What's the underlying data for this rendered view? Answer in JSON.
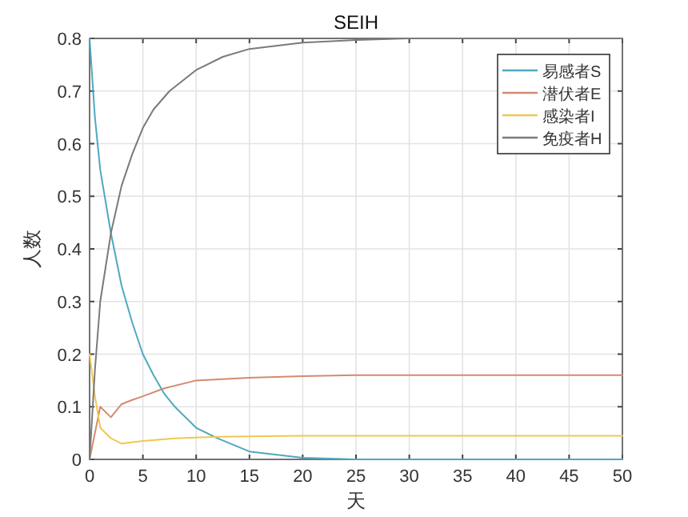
{
  "chart_data": {
    "type": "line",
    "title": "SEIH",
    "xlabel": "天",
    "ylabel": "人数",
    "xlim": [
      0,
      50
    ],
    "ylim": [
      0,
      0.8
    ],
    "xticks": [
      0,
      5,
      10,
      15,
      20,
      25,
      30,
      35,
      40,
      45,
      50
    ],
    "yticks": [
      0,
      0.1,
      0.2,
      0.3,
      0.4,
      0.5,
      0.6,
      0.7,
      0.8
    ],
    "grid": true,
    "legend": "top right",
    "marker": "none",
    "line_style": "solid",
    "series": [
      {
        "name": "易感者S",
        "color": "#4fa8c0",
        "x": [
          0,
          0.5,
          1,
          2,
          3,
          4,
          5,
          6,
          7,
          8,
          10,
          12,
          15,
          20,
          25,
          30,
          40,
          50
        ],
        "values": [
          0.8,
          0.65,
          0.55,
          0.43,
          0.33,
          0.26,
          0.2,
          0.16,
          0.125,
          0.1,
          0.06,
          0.04,
          0.015,
          0.003,
          0,
          0,
          0,
          0
        ]
      },
      {
        "name": "潜伏者E",
        "color": "#d48a70",
        "x": [
          0,
          0.5,
          1,
          2,
          3,
          4,
          5,
          7,
          10,
          15,
          20,
          25,
          30,
          40,
          50
        ],
        "values": [
          0,
          0.05,
          0.1,
          0.08,
          0.105,
          0.113,
          0.12,
          0.135,
          0.15,
          0.155,
          0.158,
          0.16,
          0.16,
          0.16,
          0.16
        ]
      },
      {
        "name": "感染者I",
        "color": "#f0c850",
        "x": [
          0,
          0.5,
          1,
          2,
          3,
          5,
          8,
          12,
          20,
          30,
          40,
          50
        ],
        "values": [
          0.2,
          0.12,
          0.06,
          0.04,
          0.03,
          0.035,
          0.04,
          0.043,
          0.045,
          0.045,
          0.045,
          0.045
        ]
      },
      {
        "name": "免疫者H",
        "color": "#7a7a7a",
        "x": [
          0,
          0.5,
          1,
          2,
          3,
          4,
          5,
          6,
          7.5,
          10,
          12.5,
          15,
          20,
          25,
          30,
          40,
          50
        ],
        "values": [
          0,
          0.17,
          0.3,
          0.43,
          0.52,
          0.58,
          0.63,
          0.665,
          0.7,
          0.74,
          0.765,
          0.78,
          0.792,
          0.797,
          0.8,
          0.8,
          0.8
        ]
      }
    ]
  }
}
